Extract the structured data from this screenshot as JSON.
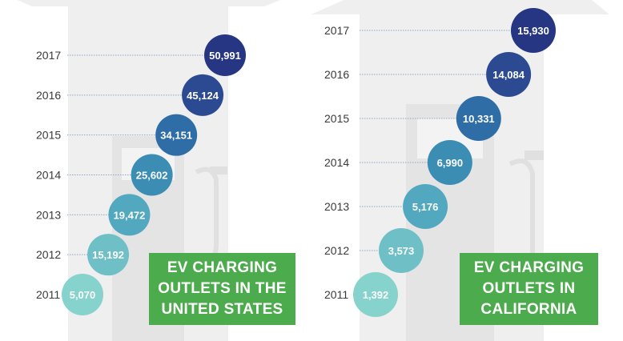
{
  "colors": {
    "line": "#8fa7c4",
    "year_text": "#3a3a3a",
    "background_art": "#efefef",
    "badge_bg": "#4cab4c",
    "badge_text": "#ffffff",
    "bubble_palette": [
      "#86d2cc",
      "#6fc0c6",
      "#52a8bf",
      "#3b8db4",
      "#2f6da6",
      "#2b4a91",
      "#263682"
    ]
  },
  "chart_data": [
    {
      "type": "scatter",
      "title": "",
      "categories": [
        "2011",
        "2012",
        "2013",
        "2014",
        "2015",
        "2016",
        "2017"
      ],
      "values": [
        5070,
        15192,
        19472,
        25602,
        34151,
        45124,
        50991
      ],
      "value_labels": [
        "5,070",
        "15,192",
        "19,472",
        "25,602",
        "34,151",
        "45,124",
        "50,991"
      ],
      "badge_lines": [
        "EV CHARGING",
        "OUTLETS IN THE",
        "UNITED STATES"
      ],
      "grid": false,
      "legend": "none"
    },
    {
      "type": "scatter",
      "title": "",
      "categories": [
        "2011",
        "2012",
        "2013",
        "2014",
        "2015",
        "2016",
        "2017"
      ],
      "values": [
        1392,
        3573,
        5176,
        6990,
        10331,
        14084,
        15930
      ],
      "value_labels": [
        "1,392",
        "3,573",
        "5,176",
        "6,990",
        "10,331",
        "14,084",
        "15,930"
      ],
      "badge_lines": [
        "EV CHARGING",
        "OUTLETS IN",
        "CALIFORNIA"
      ],
      "grid": false,
      "legend": "none"
    }
  ]
}
